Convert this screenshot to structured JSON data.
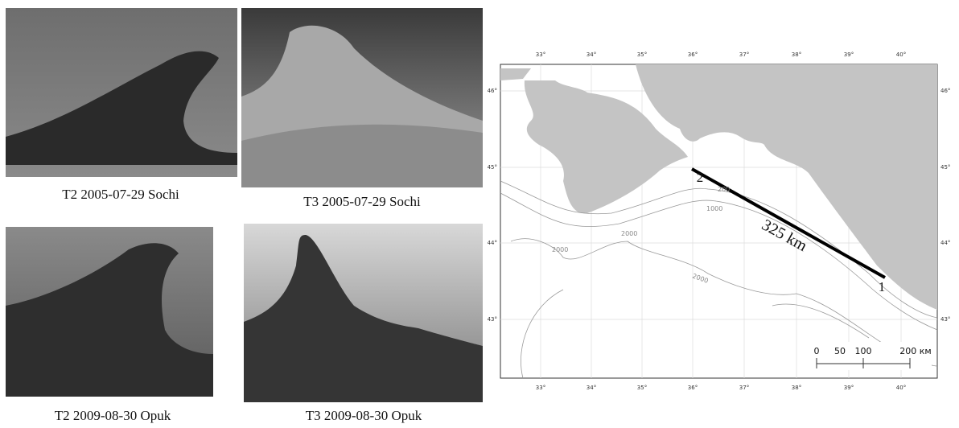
{
  "photos": [
    {
      "caption": "T2 2005-07-29 Sochi"
    },
    {
      "caption": "T3 2005-07-29 Sochi"
    },
    {
      "caption": "T2 2009-08-30 Opuk"
    },
    {
      "caption": "T3 2009-08-30 Opuk"
    }
  ],
  "map": {
    "lon_labels": [
      "33°",
      "34°",
      "35°",
      "36°",
      "37°",
      "38°",
      "39°",
      "40°"
    ],
    "lat_labels": [
      "46°",
      "45°",
      "44°",
      "43°"
    ],
    "track_label": "325 km",
    "endpoints": [
      "1",
      "2"
    ],
    "contour_labels": [
      "200",
      "1000",
      "2000",
      "2000",
      "2000"
    ],
    "scale_labels": [
      "0",
      "50",
      "100",
      "200 км"
    ]
  }
}
